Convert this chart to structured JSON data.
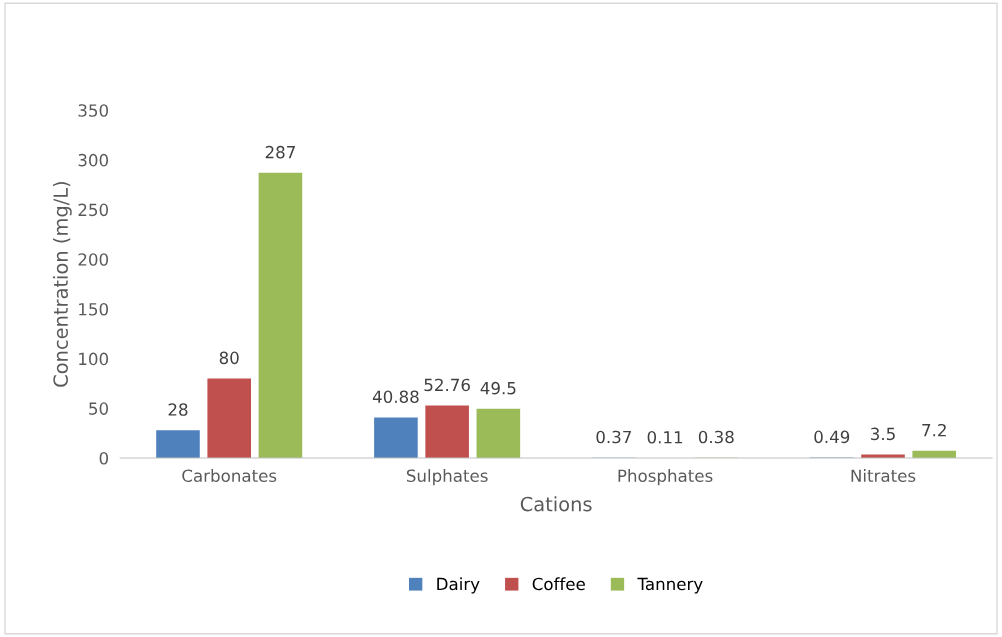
{
  "chart_data": {
    "type": "bar",
    "xlabel": "Cations",
    "ylabel": "Concentration (mg/L)",
    "categories": [
      "Carbonates",
      "Sulphates",
      "Phosphates",
      "Nitrates"
    ],
    "series": [
      {
        "name": "Dairy",
        "color": "#4f81bd",
        "values": [
          28,
          40.88,
          0.37,
          0.49
        ]
      },
      {
        "name": "Coffee",
        "color": "#c0504d",
        "values": [
          80,
          52.76,
          0.11,
          3.5
        ]
      },
      {
        "name": "Tannery",
        "color": "#9bbb59",
        "values": [
          287,
          49.5,
          0.38,
          7.2
        ]
      }
    ],
    "ylim": [
      0,
      350
    ],
    "yticks": [
      0,
      50,
      100,
      150,
      200,
      250,
      300,
      350
    ],
    "data_labels": true,
    "legend": "bottom",
    "grid": false
  }
}
